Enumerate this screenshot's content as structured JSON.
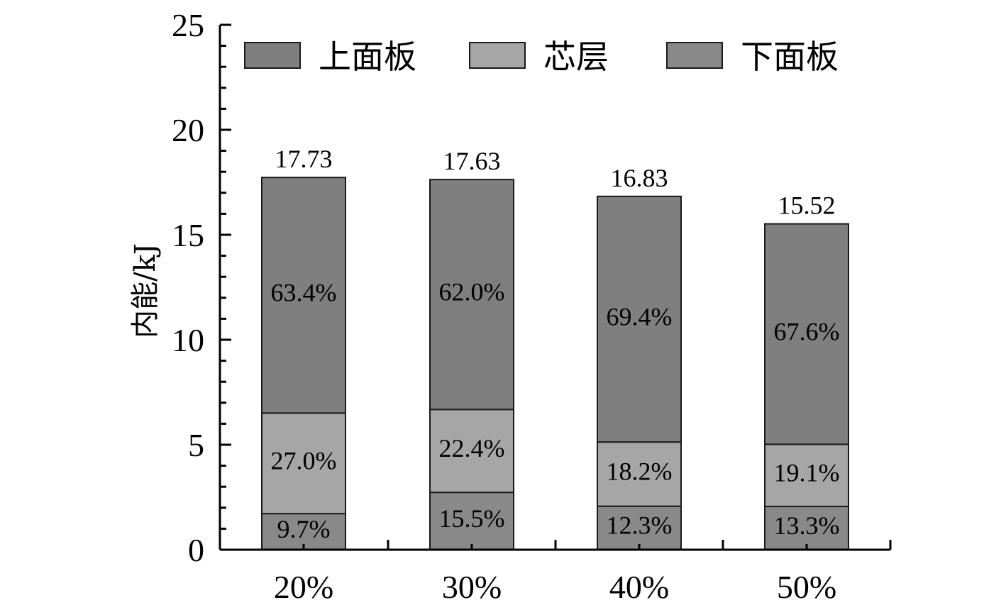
{
  "chart_data": {
    "type": "bar",
    "stacked": true,
    "ylabel": "内能/kJ",
    "xlabel": "",
    "ylim": [
      0,
      25
    ],
    "yticks": [
      "0",
      "5",
      "10",
      "15",
      "20",
      "25"
    ],
    "categories": [
      "20%",
      "30%",
      "40%",
      "50%"
    ],
    "totals": [
      17.73,
      17.63,
      16.83,
      15.52
    ],
    "total_labels": [
      "17.73",
      "17.63",
      "16.83",
      "15.52"
    ],
    "legend_position": "top",
    "series": [
      {
        "name": "下面板",
        "color": "#898989",
        "values": [
          1.72,
          2.73,
          2.07,
          2.06
        ],
        "labels": [
          "9.7%",
          "15.5%",
          "12.3%",
          "13.3%"
        ]
      },
      {
        "name": "芯层",
        "color": "#a6a6a6",
        "values": [
          4.79,
          3.95,
          3.06,
          2.96
        ],
        "labels": [
          "27.0%",
          "22.4%",
          "18.2%",
          "19.1%"
        ]
      },
      {
        "name": "上面板",
        "color": "#7f7f7f",
        "values": [
          11.22,
          10.95,
          11.7,
          10.5
        ],
        "labels": [
          "63.4%",
          "62.0%",
          "69.4%",
          "67.6%"
        ]
      }
    ],
    "legend_order": [
      "上面板",
      "芯层",
      "下面板"
    ]
  }
}
